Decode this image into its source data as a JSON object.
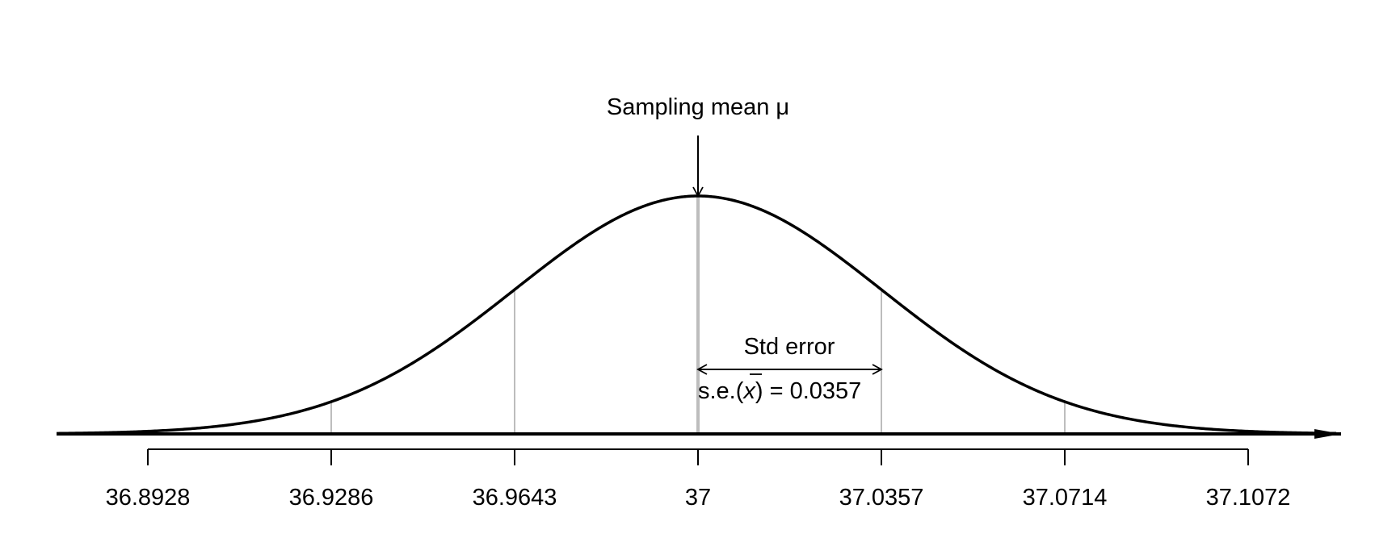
{
  "diagram": {
    "mean_label": "Sampling mean μ",
    "se_title": "Std error",
    "se_prefix": "s.e.(",
    "se_symbol": "x",
    "se_suffix": ") = 0.0357",
    "tick_labels": [
      "36.8928",
      "36.9286",
      "36.9643",
      "37",
      "37.0357",
      "37.0714",
      "37.1072"
    ],
    "mean": 37,
    "std_error": 0.0357,
    "sd_lines": [
      -3,
      -2,
      -1,
      0,
      1,
      2,
      3
    ]
  }
}
